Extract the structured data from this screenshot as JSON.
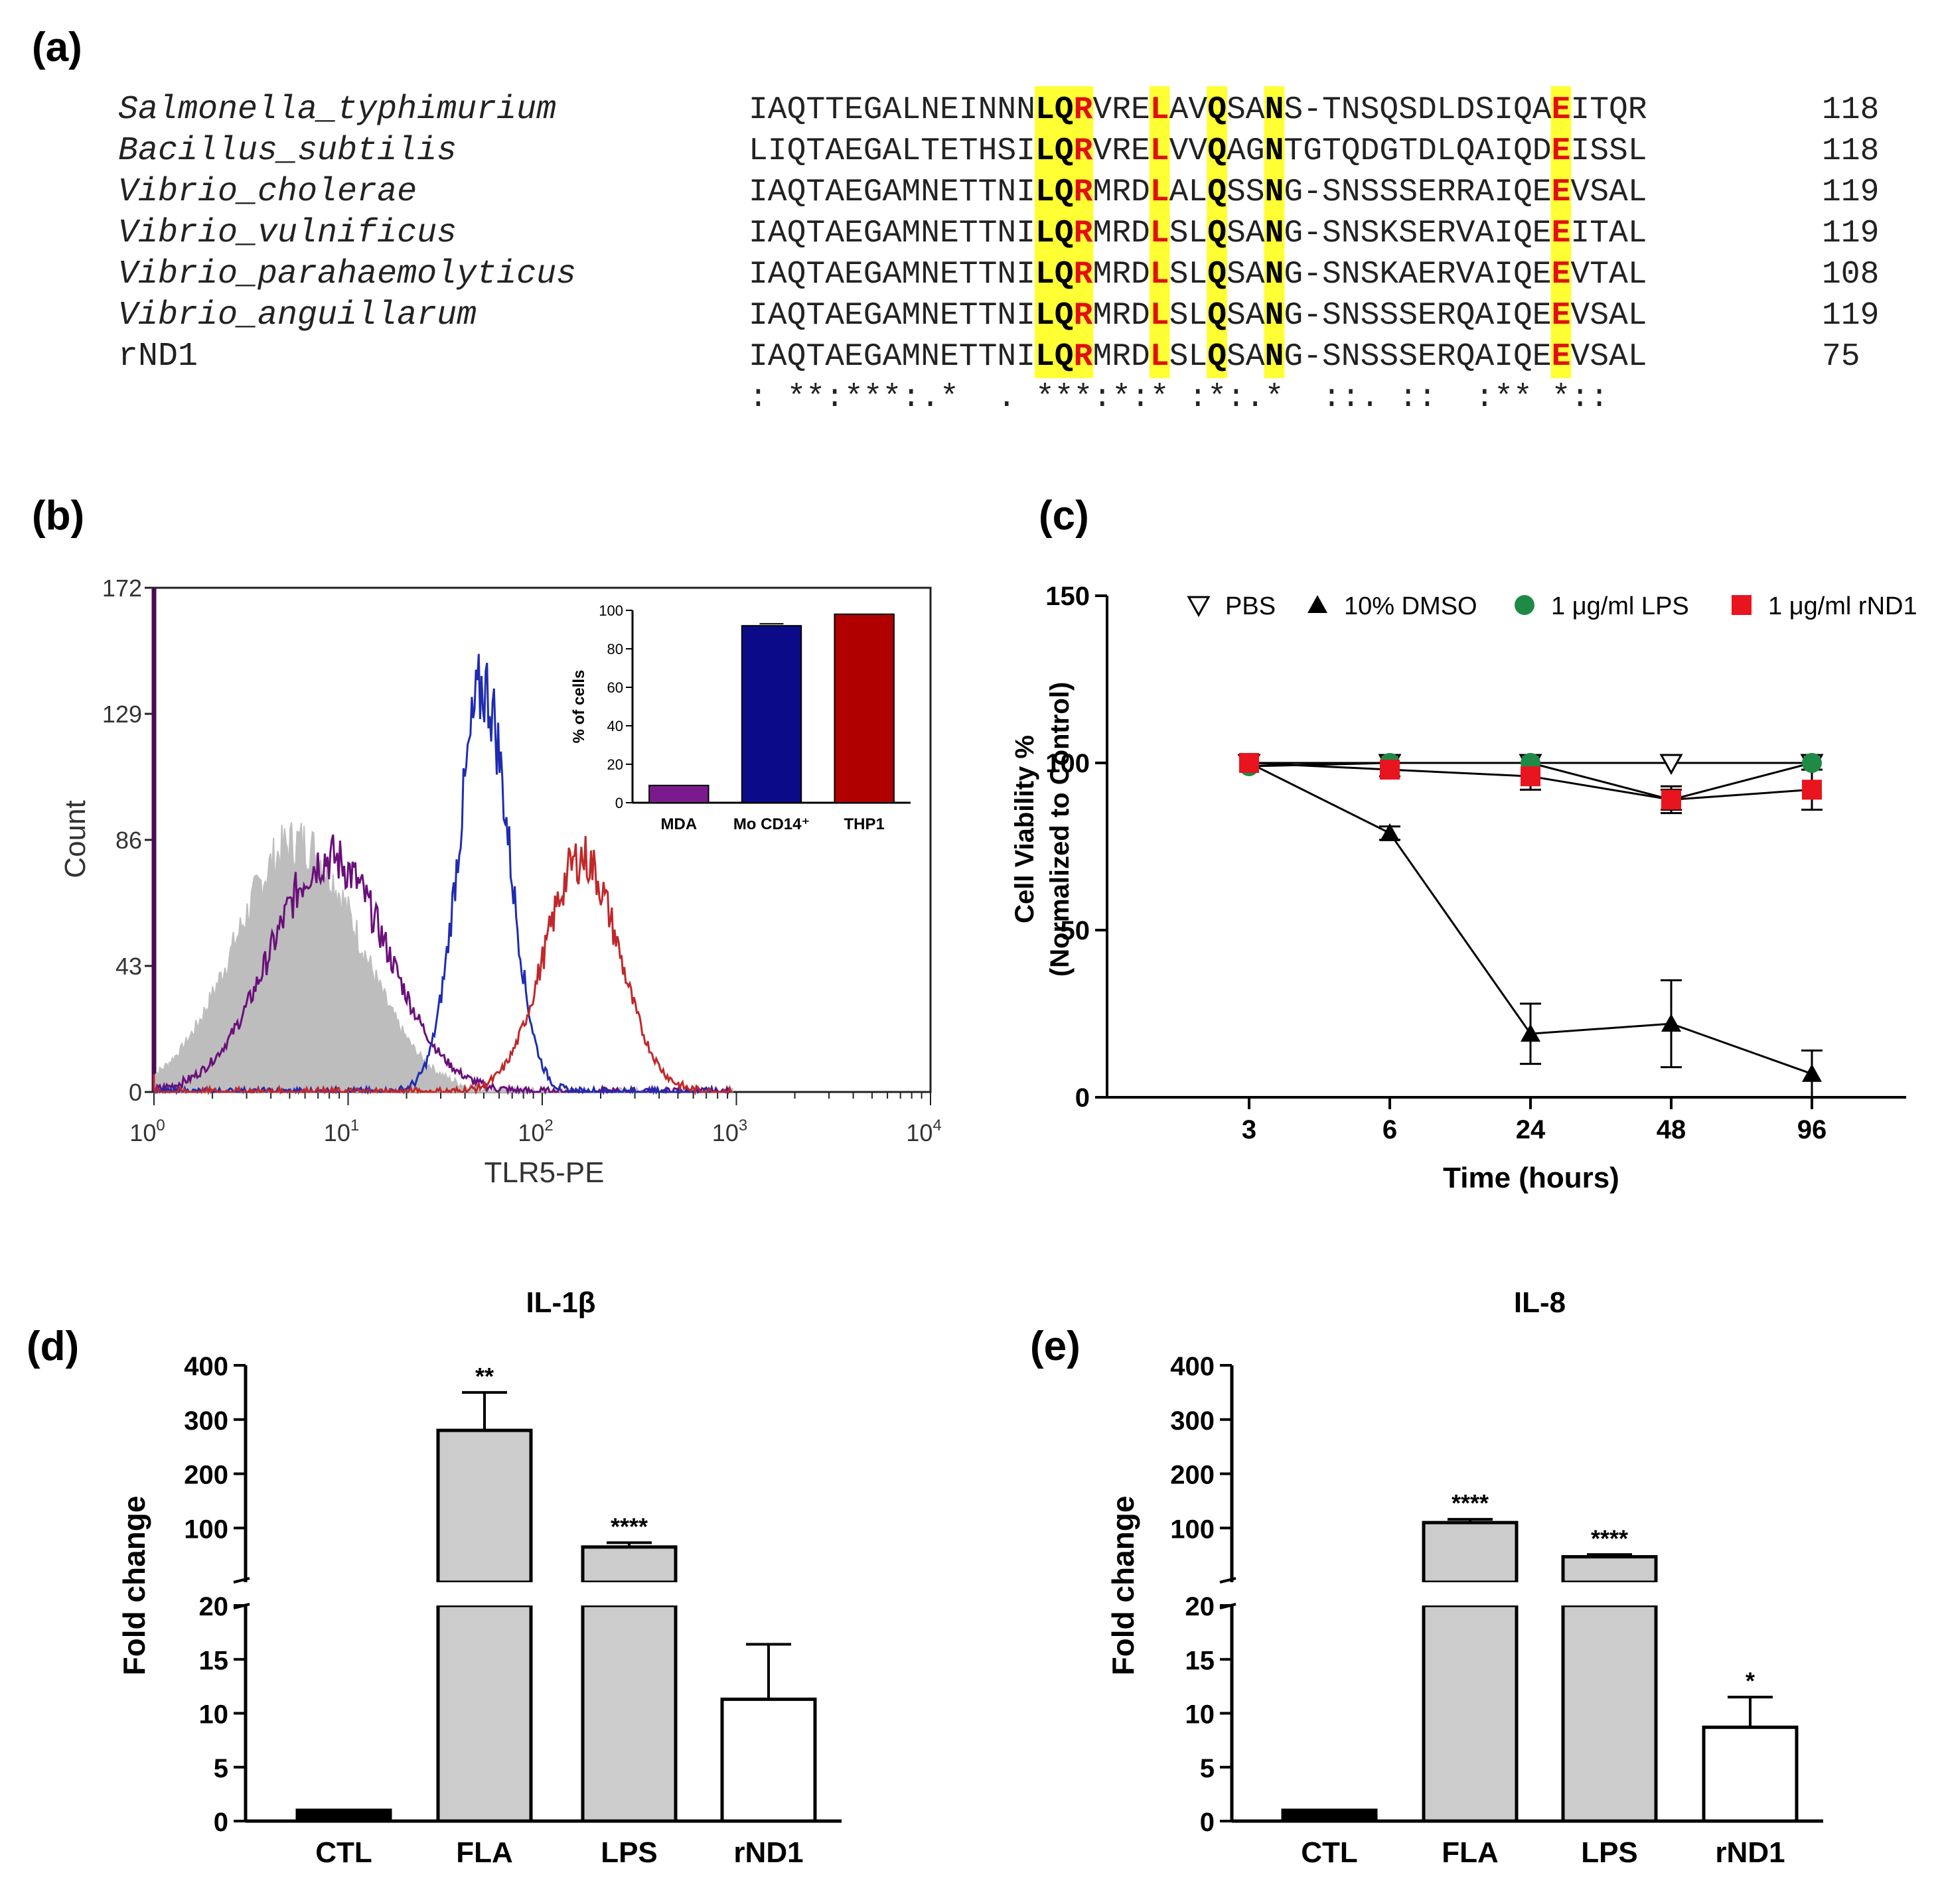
{
  "panel_labels": {
    "a": "(a)",
    "b": "(b)",
    "c": "(c)",
    "d": "(d)",
    "e": "(e)"
  },
  "alignment": {
    "rows": [
      {
        "name": "Salmonella_typhimurium",
        "seq": "IAQTTEGALNEINNNLQRVRELAVQSANS-TNSQSDLDSIQAEITQR",
        "num": "118"
      },
      {
        "name": "Bacillus_subtilis",
        "seq": "LIQTAEGALTETHSILQRVRELVVQAGNTGTQDGTDLQAIQDEISSL",
        "num": "118"
      },
      {
        "name": "Vibrio_cholerae",
        "seq": "IAQTAEGAMNETTNILQRMRDLALQSSNG-SNSSSERRAIQEEVSAL",
        "num": "119"
      },
      {
        "name": "Vibrio_vulnificus",
        "seq": "IAQTAEGAMNETTNILQRMRDLSLQSANG-SNSKSERVAIQEEITAL",
        "num": "119"
      },
      {
        "name": "Vibrio_parahaemolyticus",
        "seq": "IAQTAEGAMNETTNILQRMRDLSLQSANG-SNSKAERVAIQEEVTAL",
        "num": "108"
      },
      {
        "name": "Vibrio_anguillarum",
        "seq": "IAQTAEGAMNETTNILQRMRDLSLQSANG-SNSSSERQAIQEEVSAL",
        "num": "119"
      },
      {
        "name": "rND1",
        "seq": "IAQTAEGAMNETTNILQRMRDLSLQSANG-SNSSSERQAIQEEVSAL",
        "num": "75"
      }
    ],
    "consensus": ": **:***:.*  . ***:*:* :*:.*  ::. ::  :** *::",
    "highlight_columns": [
      15,
      16,
      17,
      21,
      24,
      27,
      42
    ],
    "red_columns": [
      17,
      21,
      42
    ],
    "highlight_color": "#ffff33",
    "residue_red": "#e01010"
  },
  "chart_data": [
    {
      "id": "b-histogram",
      "type": "area",
      "title": "",
      "xlabel": "TLR5-PE",
      "ylabel": "Count",
      "xscale": "log",
      "xlim": [
        1,
        10000
      ],
      "ylim": [
        0,
        172
      ],
      "yticks": [
        "0",
        "43",
        "86",
        "129",
        "172"
      ],
      "xticks": [
        {
          "base": "10",
          "exp": "0"
        },
        {
          "base": "10",
          "exp": "1"
        },
        {
          "base": "10",
          "exp": "2"
        },
        {
          "base": "10",
          "exp": "3"
        },
        {
          "base": "10",
          "exp": "4"
        }
      ],
      "series": [
        {
          "color": "#bdbdbd",
          "filled": true,
          "peak_x": 5.5,
          "peak_y": 85,
          "width": 0.32
        },
        {
          "color": "#6a0f7a",
          "filled": false,
          "peak_x": 8,
          "peak_y": 80,
          "width": 0.3
        },
        {
          "color": "#1f2cb0",
          "filled": false,
          "peak_x": 50,
          "peak_y": 138,
          "width": 0.13
        },
        {
          "color": "#c0282a",
          "filled": false,
          "peak_x": 160,
          "peak_y": 80,
          "width": 0.19
        }
      ],
      "inset": {
        "type": "bar",
        "ylabel": "% of cells",
        "ylim": [
          0,
          100
        ],
        "yticks": [
          "0",
          "20",
          "40",
          "60",
          "80",
          "100"
        ],
        "categories": [
          "MDA",
          "Mo CD14⁺",
          "THP1"
        ],
        "values": [
          9,
          92,
          98
        ],
        "errors": [
          0,
          1,
          0
        ],
        "colors": [
          "#7b1a8c",
          "#0b0b8a",
          "#b00000"
        ]
      }
    },
    {
      "id": "c-viability",
      "type": "line",
      "title": "",
      "xlabel": "Time (hours)",
      "ylabel_line1": "Cell Viability %",
      "ylabel_line2": "(Normalized to Control)",
      "categories": [
        "3",
        "6",
        "24",
        "48",
        "96"
      ],
      "ylim": [
        0,
        150
      ],
      "yticks": [
        "0",
        "50",
        "100",
        "150"
      ],
      "series": [
        {
          "name": "PBS",
          "marker": "triangle-down-open",
          "color": "#000000",
          "values": [
            100,
            100,
            100,
            100,
            100
          ],
          "errors": [
            0,
            0,
            0,
            0,
            0
          ]
        },
        {
          "name": "10% DMSO",
          "marker": "triangle-up",
          "color": "#000000",
          "values": [
            100,
            79,
            19,
            22,
            7
          ],
          "errors": [
            0,
            2,
            9,
            13,
            7
          ]
        },
        {
          "name": "1 μg/ml LPS",
          "marker": "circle",
          "color": "#1e8a46",
          "values": [
            99,
            100,
            100,
            89,
            100
          ],
          "errors": [
            0,
            0,
            0,
            3,
            0
          ]
        },
        {
          "name": "1 μg/ml rND1",
          "marker": "square",
          "color": "#e8141e",
          "values": [
            100,
            98,
            96,
            89,
            92
          ],
          "errors": [
            0,
            2,
            4,
            4,
            6
          ]
        }
      ]
    },
    {
      "id": "d-il1b",
      "type": "bar",
      "title": "IL-1β",
      "ylabel": "Fold change",
      "categories": [
        "CTL",
        "FLA",
        "LPS",
        "rND1"
      ],
      "values": [
        1,
        280,
        65,
        11.3
      ],
      "errors": [
        0,
        70,
        8,
        5.1
      ],
      "significance": [
        "",
        "**",
        "****",
        ""
      ],
      "fills": [
        "#000000",
        "#cccccc",
        "#cccccc",
        "#ffffff"
      ],
      "ylim_lower": [
        0,
        20
      ],
      "ylim_upper": [
        0,
        400
      ],
      "yticks_lower": [
        "0",
        "5",
        "10",
        "15",
        "20"
      ],
      "yticks_upper": [
        "100",
        "200",
        "300",
        "400"
      ]
    },
    {
      "id": "e-il8",
      "type": "bar",
      "title": "IL-8",
      "ylabel": "Fold change",
      "categories": [
        "CTL",
        "FLA",
        "LPS",
        "rND1"
      ],
      "values": [
        1,
        110,
        47,
        8.7
      ],
      "errors": [
        0,
        6,
        4,
        2.8
      ],
      "significance": [
        "",
        "****",
        "****",
        "*"
      ],
      "fills": [
        "#000000",
        "#cccccc",
        "#cccccc",
        "#ffffff"
      ],
      "ylim_lower": [
        0,
        20
      ],
      "ylim_upper": [
        0,
        400
      ],
      "yticks_lower": [
        "0",
        "5",
        "10",
        "15",
        "20"
      ],
      "yticks_upper": [
        "100",
        "200",
        "300",
        "400"
      ]
    }
  ]
}
